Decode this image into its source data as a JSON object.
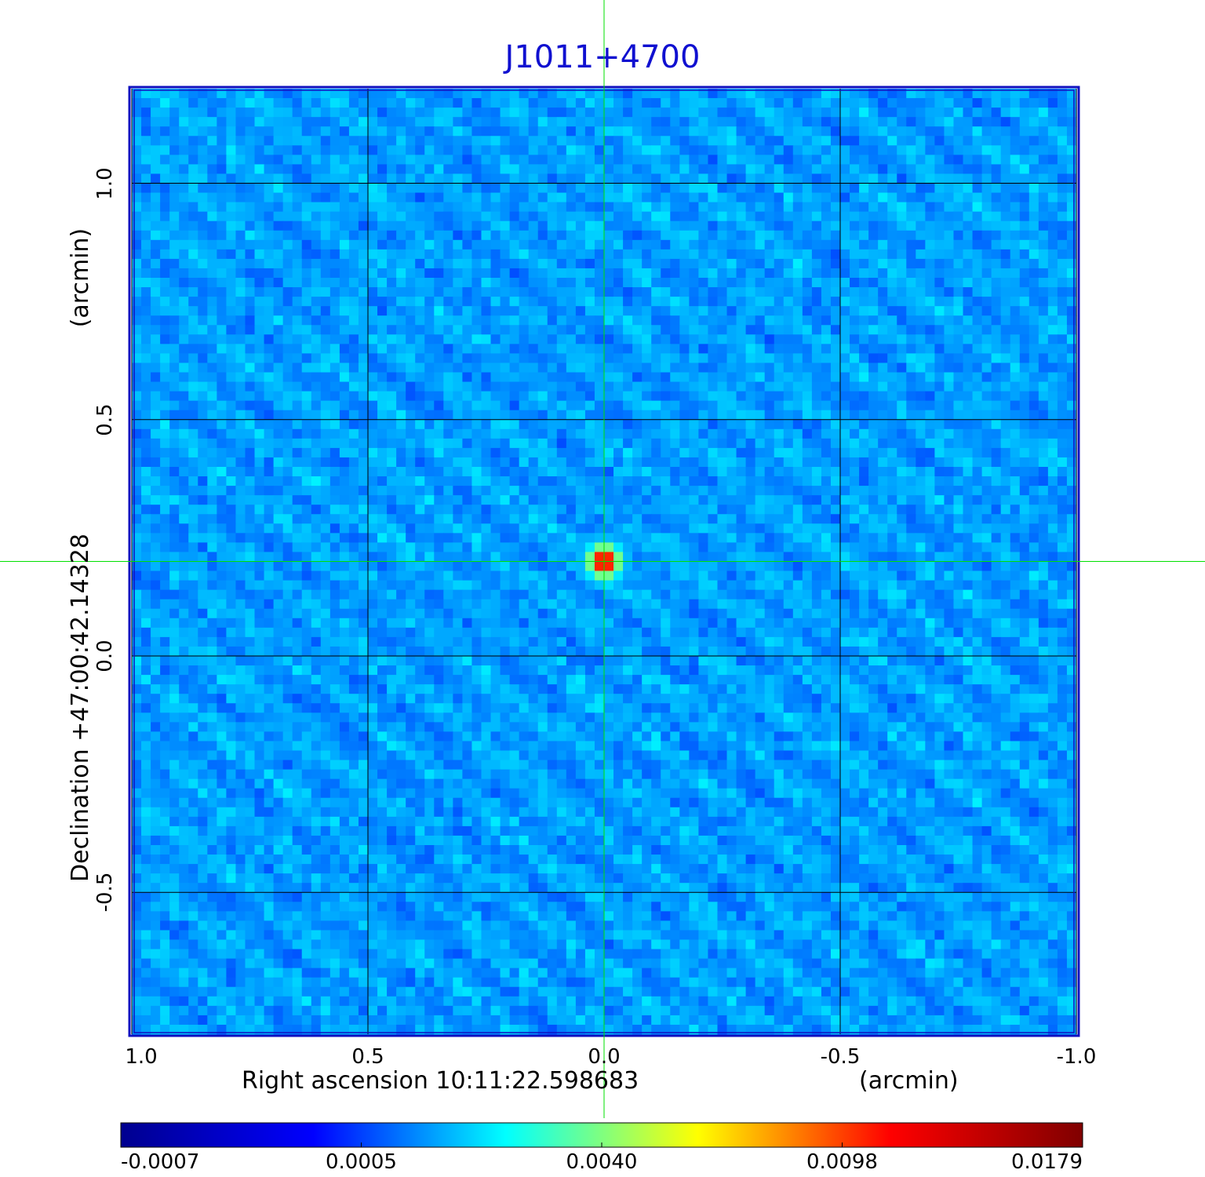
{
  "chart_data": {
    "type": "heatmap",
    "title": "J1011+4700",
    "xlabel": "Right ascension  10:11:22.598683",
    "xunit": "(arcmin)",
    "ylabel": "Declination  +47:00:42.14328",
    "yunit": "(arcmin)",
    "xlim": [
      1.0,
      -1.0
    ],
    "ylim": [
      -0.8,
      1.2
    ],
    "xticks": [
      "1.0",
      "0.5",
      "0.0",
      "-0.5",
      "-1.0"
    ],
    "xtick_values": [
      1.0,
      0.5,
      0.0,
      -0.5,
      -1.0
    ],
    "yticks": [
      "1.0",
      "0.5",
      "0.0",
      "-0.5"
    ],
    "ytick_values": [
      1.0,
      0.5,
      0.0,
      -0.5
    ],
    "grid": true,
    "source": {
      "x": 0.0,
      "y": 0.2,
      "peak": 0.0179
    },
    "crosshair": {
      "x": 0.0,
      "y": 0.2,
      "color": "#00e000"
    },
    "colorbar": {
      "ticks": [
        "-0.0007",
        "0.0005",
        "0.0040",
        "0.0098",
        "0.0179"
      ],
      "tick_values": [
        -0.0007,
        0.0005,
        0.004,
        0.0098,
        0.0179
      ],
      "colors": [
        "#00008f",
        "#0000ff",
        "#00ffff",
        "#ffff00",
        "#ff0000",
        "#800000"
      ]
    },
    "colors": {
      "background": "#0a5af0",
      "title": "#1010d0",
      "frame": "#1010c0"
    }
  }
}
